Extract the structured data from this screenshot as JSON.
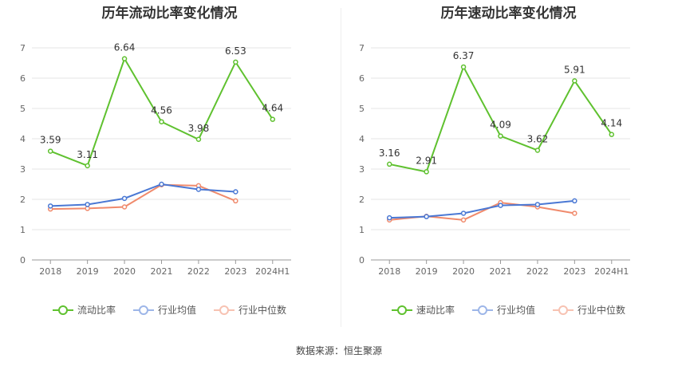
{
  "charts": [
    {
      "title": "历年流动比率变化情况",
      "chart_data": {
        "type": "line",
        "title": "历年流动比率变化情况",
        "categories": [
          "2018",
          "2019",
          "2020",
          "2021",
          "2022",
          "2023",
          "2024H1"
        ],
        "ylim": [
          0,
          7
        ],
        "yticks": [
          0,
          1,
          2,
          3,
          4,
          5,
          6,
          7
        ],
        "grid": true,
        "legend_position": "bottom",
        "series": [
          {
            "name": "流动比率",
            "color": "#5fc12f",
            "labeled": true,
            "values": [
              3.59,
              3.11,
              6.64,
              4.56,
              3.98,
              6.53,
              4.64
            ],
            "labels": [
              "3.59",
              "3.11",
              "6.64",
              "4.56",
              "3.98",
              "6.53",
              "4.64"
            ]
          },
          {
            "name": "行业均值",
            "color": "#4a78d4",
            "labeled": false,
            "values": [
              1.78,
              1.83,
              2.03,
              2.5,
              2.33,
              2.25,
              null
            ]
          },
          {
            "name": "行业中位数",
            "color": "#f08a6c",
            "labeled": false,
            "values": [
              1.68,
              1.7,
              1.75,
              2.48,
              2.45,
              1.95,
              null
            ]
          }
        ]
      }
    },
    {
      "title": "历年速动比率变化情况",
      "chart_data": {
        "type": "line",
        "title": "历年速动比率变化情况",
        "categories": [
          "2018",
          "2019",
          "2020",
          "2021",
          "2022",
          "2023",
          "2024H1"
        ],
        "ylim": [
          0,
          7
        ],
        "yticks": [
          0,
          1,
          2,
          3,
          4,
          5,
          6,
          7
        ],
        "grid": true,
        "legend_position": "bottom",
        "series": [
          {
            "name": "速动比率",
            "color": "#5fc12f",
            "labeled": true,
            "values": [
              3.16,
              2.91,
              6.37,
              4.09,
              3.62,
              5.91,
              4.14
            ],
            "labels": [
              "3.16",
              "2.91",
              "6.37",
              "4.09",
              "3.62",
              "5.91",
              "4.14"
            ]
          },
          {
            "name": "行业均值",
            "color": "#4a78d4",
            "labeled": false,
            "values": [
              1.39,
              1.43,
              1.54,
              1.8,
              1.83,
              1.95,
              null
            ]
          },
          {
            "name": "行业中位数",
            "color": "#f08a6c",
            "labeled": false,
            "values": [
              1.32,
              1.44,
              1.32,
              1.89,
              1.75,
              1.54,
              null
            ]
          }
        ]
      }
    }
  ],
  "source_text": "数据来源：恒生聚源"
}
